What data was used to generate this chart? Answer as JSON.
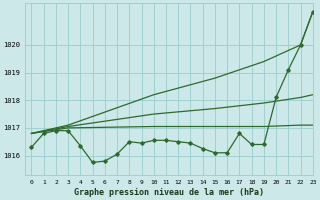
{
  "bg_color": "#cce8e8",
  "grid_color": "#99cccc",
  "line_color": "#2d6a2d",
  "title": "Graphe pression niveau de la mer (hPa)",
  "xlim": [
    -0.5,
    23
  ],
  "ylim": [
    1015.3,
    1021.5
  ],
  "yticks": [
    1016,
    1017,
    1018,
    1019,
    1020
  ],
  "xtick_labels": [
    "0",
    "1",
    "2",
    "3",
    "4",
    "5",
    "6",
    "7",
    "8",
    "9",
    "10",
    "11",
    "12",
    "13",
    "14",
    "15",
    "16",
    "17",
    "18",
    "19",
    "20",
    "21",
    "22",
    "23"
  ],
  "series": [
    {
      "x": [
        0,
        1,
        2,
        3,
        4,
        5,
        6,
        7,
        8,
        9,
        10,
        11,
        12,
        13,
        14,
        15,
        16,
        17,
        18,
        19,
        20,
        21,
        22,
        23
      ],
      "y": [
        1016.3,
        1016.8,
        1016.9,
        1016.9,
        1016.35,
        1015.75,
        1015.8,
        1016.05,
        1016.5,
        1016.45,
        1016.55,
        1016.55,
        1016.5,
        1016.45,
        1016.25,
        1016.1,
        1016.1,
        1016.8,
        1016.4,
        1016.4,
        1018.1,
        1019.1,
        1020.0,
        1021.2
      ],
      "marker": true,
      "lw": 0.9
    },
    {
      "x": [
        0,
        3,
        10,
        15,
        17,
        19,
        22,
        23
      ],
      "y": [
        1016.8,
        1017.0,
        1017.05,
        1017.05,
        1017.05,
        1017.05,
        1017.1,
        1017.1
      ],
      "marker": false,
      "lw": 0.9
    },
    {
      "x": [
        0,
        3,
        10,
        15,
        19,
        22,
        23
      ],
      "y": [
        1016.8,
        1017.05,
        1017.5,
        1017.7,
        1017.9,
        1018.1,
        1018.2
      ],
      "marker": false,
      "lw": 0.9
    },
    {
      "x": [
        0,
        3,
        10,
        15,
        19,
        22,
        23
      ],
      "y": [
        1016.8,
        1017.1,
        1018.2,
        1018.8,
        1019.4,
        1020.0,
        1021.2
      ],
      "marker": false,
      "lw": 0.9
    }
  ]
}
